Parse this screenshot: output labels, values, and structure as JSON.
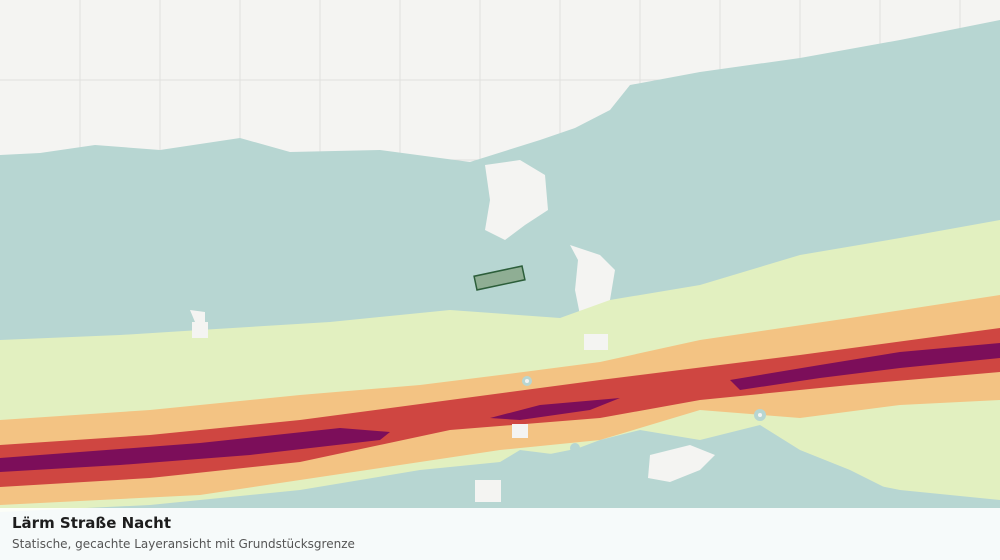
{
  "caption": {
    "title": "Lärm Straße Nacht",
    "subtitle": "Statische, gecachte Layeransicht mit Grundstücksgrenze"
  }
}
